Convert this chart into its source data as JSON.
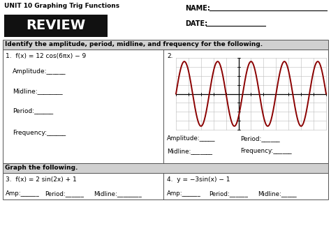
{
  "title": "UNIT 10 Graphing Trig Functions",
  "review_text": "REVIEW",
  "name_label": "NAME:",
  "date_label": "DATE:",
  "section1_header": "Identify the amplitude, period, midline, and frequency for the following.",
  "q1_text": "1.  f(x) = 12 cos(6πx) − 9",
  "q1_amplitude": "Amplitude:______",
  "q1_midline": "Midline:________",
  "q1_period": "Period:______",
  "q1_frequency": "Frequency:______",
  "q2_label": "2.",
  "q2_amplitude": "Amplitude:_____",
  "q2_period": "Period:______",
  "q2_midline": "Midline:_______",
  "q2_frequency": "Frequency:______",
  "section2_header": "Graph the following.",
  "q3_text": "3.  f(x) = 2 sin(2x) + 1",
  "q3_amp": "Amp:______",
  "q3_period": "Period:______",
  "q3_midline": "Midline:________",
  "q4_text": "4.  y = −3sin(x) − 1",
  "q4_amp": "Amp:______",
  "q4_period": "Period:______",
  "q4_midline": "Midline:_____",
  "curve_color": "#8B0000",
  "grid_color": "#bbbbbb",
  "bg_color": "#ffffff",
  "review_box_color": "#111111",
  "review_text_color": "#ffffff",
  "section_header_bg": "#d0d0d0",
  "border_color": "#555555",
  "title_bold": true
}
